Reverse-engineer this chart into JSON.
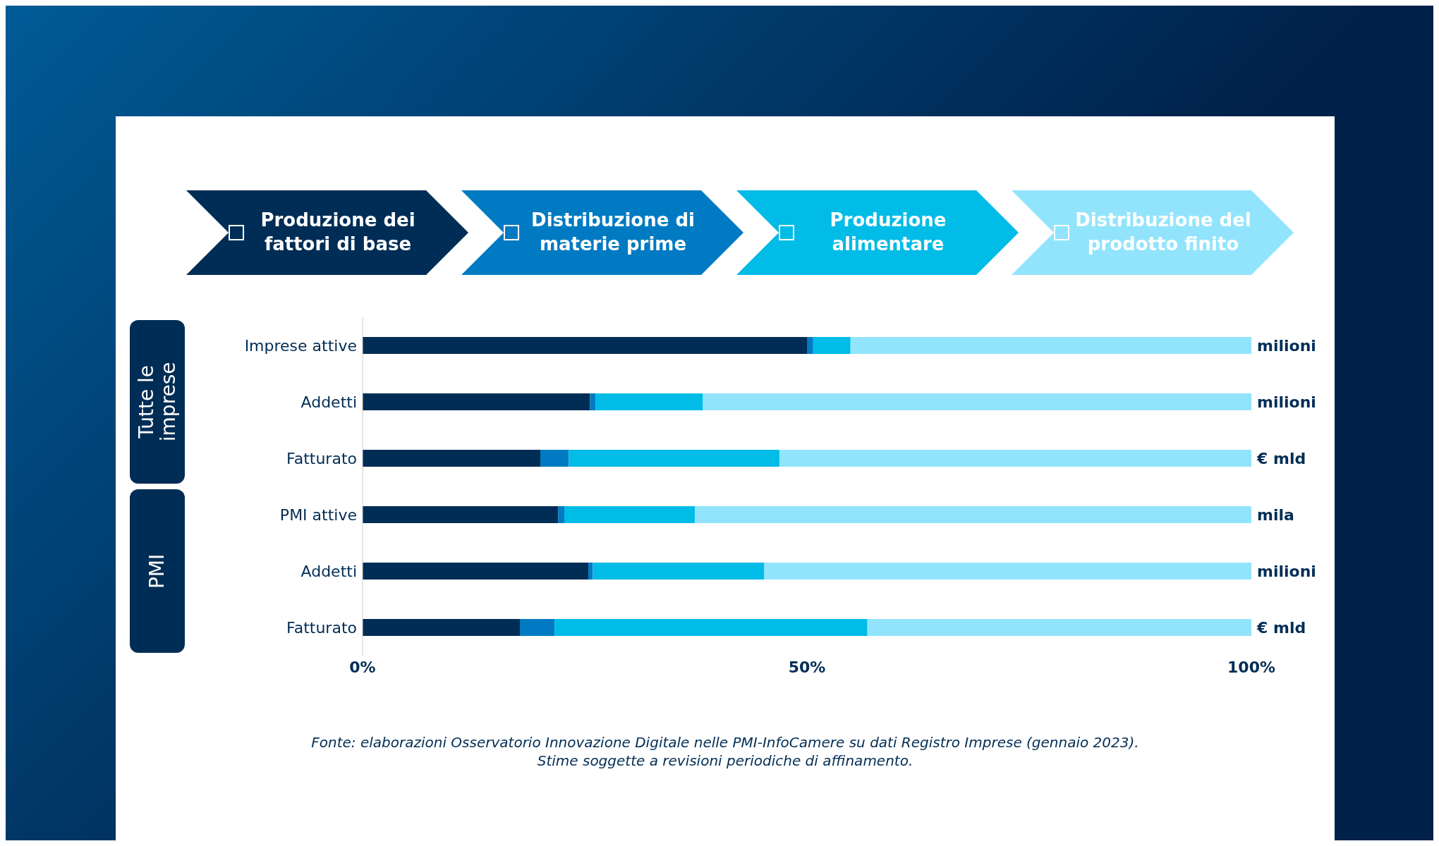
{
  "chart_data": {
    "type": "bar",
    "orientation": "horizontal",
    "stacked": true,
    "categories": [
      "Imprese attive",
      "Addetti",
      "Fatturato",
      "PMI attive",
      "Addetti",
      "Fatturato"
    ],
    "series": [
      {
        "name": "Produzione dei fattori di base",
        "color": "#002d55",
        "values": [
          50.0,
          25.6,
          20.0,
          22.0,
          25.4,
          17.7
        ]
      },
      {
        "name": "Distribuzione di materie prime",
        "color": "#007ac2",
        "values": [
          0.7,
          0.6,
          3.2,
          0.7,
          0.5,
          3.9
        ]
      },
      {
        "name": "Produzione alimentare",
        "color": "#00bce6",
        "values": [
          4.2,
          12.1,
          23.7,
          14.7,
          19.3,
          35.2
        ]
      },
      {
        "name": "Distribuzione del prodotto finito",
        "color": "#92e4fc",
        "values": [
          45.1,
          61.7,
          53.1,
          62.6,
          54.8,
          43.2
        ]
      }
    ],
    "xlim": [
      0,
      100
    ],
    "xticks": [
      {
        "value": 0,
        "label": "0%"
      },
      {
        "value": 50,
        "label": "50%"
      },
      {
        "value": 100,
        "label": "100%"
      }
    ],
    "legend": "top",
    "annotations": [
      "milioni",
      "milioni",
      "€ mld",
      "mila",
      "milioni",
      "€ mld",
      "Tutte le imprese",
      "PMI",
      "Fonte: elaborazioni Osservatorio Innovazione Digitale nelle PMI-InfoCamere su dati Registro Imprese (gennaio 2023).",
      "Stime soggette a revisioni periodiche di affinamento."
    ]
  }
}
